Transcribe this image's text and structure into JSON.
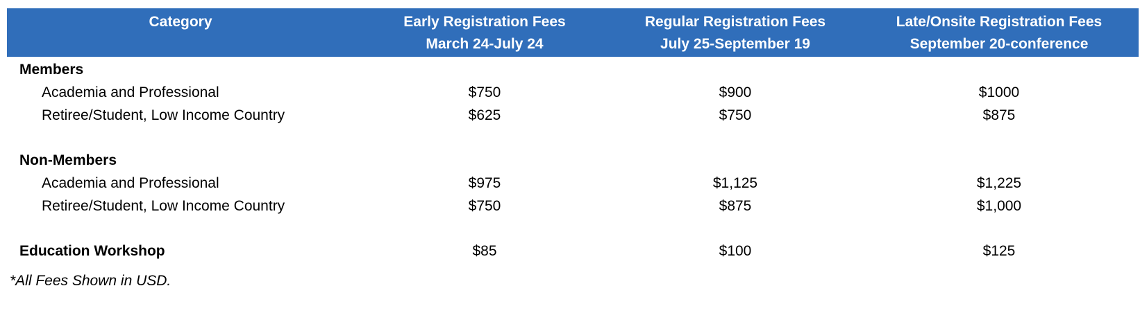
{
  "header": {
    "category": "Category",
    "columns": [
      {
        "title": "Early Registration Fees",
        "dates": "March 24-July 24"
      },
      {
        "title": "Regular Registration Fees",
        "dates": "July 25-September 19"
      },
      {
        "title": "Late/Onsite Registration Fees",
        "dates": "September 20-conference"
      }
    ]
  },
  "colors": {
    "header_bg": "#306EBA",
    "header_text": "#FFFFFF"
  },
  "groups": {
    "members": {
      "label": "Members",
      "rows": [
        {
          "label": "Academia and Professional",
          "values": [
            "$750",
            "$900",
            "$1000"
          ]
        },
        {
          "label": "Retiree/Student, Low Income Country",
          "values": [
            "$625",
            "$750",
            "$875"
          ]
        }
      ]
    },
    "non_members": {
      "label": "Non-Members",
      "rows": [
        {
          "label": "Academia and Professional",
          "values": [
            "$975",
            "$1,125",
            "$1,225"
          ]
        },
        {
          "label": "Retiree/Student, Low Income Country",
          "values": [
            "$750",
            "$875",
            "$1,000"
          ]
        }
      ]
    },
    "education": {
      "label": "Education Workshop",
      "values": [
        "$85",
        "$100",
        "$125"
      ]
    }
  },
  "note": "*All Fees Shown in USD."
}
